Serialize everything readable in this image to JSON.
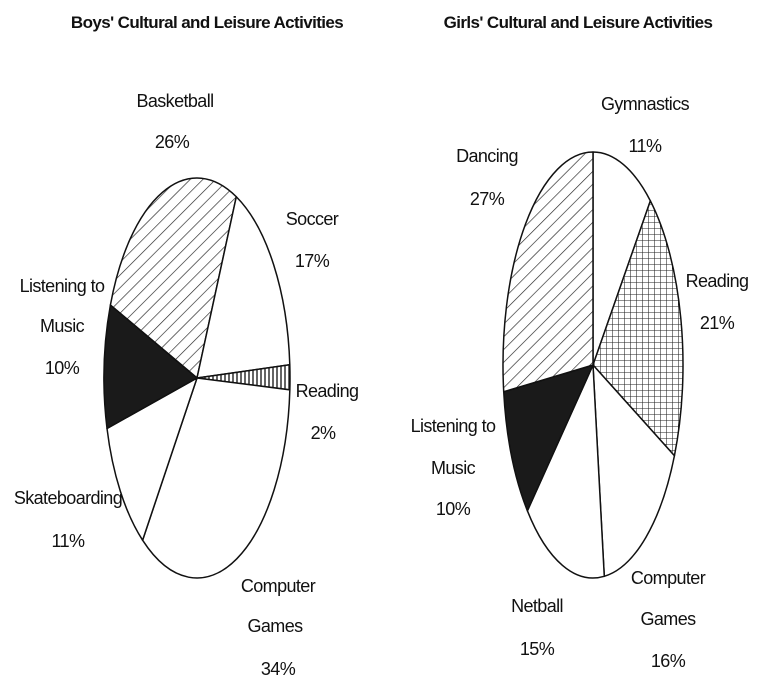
{
  "chart_data": [
    {
      "type": "pie",
      "title": "Boys' Cultural and Leisure Activities",
      "slices": [
        {
          "label": "Basketball",
          "label_lines": [
            "Basketball"
          ],
          "value": 26,
          "value_label": "26%",
          "fill": "diagonal-hatch"
        },
        {
          "label": "Soccer",
          "label_lines": [
            "Soccer"
          ],
          "value": 17,
          "value_label": "17%",
          "fill": "white"
        },
        {
          "label": "Reading",
          "label_lines": [
            "Reading"
          ],
          "value": 2,
          "value_label": "2%",
          "fill": "vertical-hatch"
        },
        {
          "label": "Computer Games",
          "label_lines": [
            "Computer",
            "Games"
          ],
          "value": 34,
          "value_label": "34%",
          "fill": "white"
        },
        {
          "label": "Skateboarding",
          "label_lines": [
            "Skateboarding"
          ],
          "value": 11,
          "value_label": "11%",
          "fill": "white"
        },
        {
          "label": "Listening to Music",
          "label_lines": [
            "Listening to",
            "Music"
          ],
          "value": 10,
          "value_label": "10%",
          "fill": "black"
        }
      ],
      "start_angle_deg": -68.6
    },
    {
      "type": "pie",
      "title": "Girls' Cultural and Leisure Activities",
      "slices": [
        {
          "label": "Gymnastics",
          "label_lines": [
            "Gymnastics"
          ],
          "value": 11,
          "value_label": "11%",
          "fill": "white"
        },
        {
          "label": "Reading",
          "label_lines": [
            "Reading"
          ],
          "value": 21,
          "value_label": "21%",
          "fill": "grid-hatch"
        },
        {
          "label": "Computer Games",
          "label_lines": [
            "Computer",
            "Games"
          ],
          "value": 16,
          "value_label": "16%",
          "fill": "white"
        },
        {
          "label": "Netball",
          "label_lines": [
            "Netball"
          ],
          "value": 15,
          "value_label": "15%",
          "fill": "white"
        },
        {
          "label": "Listening to Music",
          "label_lines": [
            "Listening to",
            "Music"
          ],
          "value": 10,
          "value_label": "10%",
          "fill": "black"
        },
        {
          "label": "Dancing",
          "label_lines": [
            "Dancing"
          ],
          "value": 27,
          "value_label": "27%",
          "fill": "diagonal-hatch"
        }
      ],
      "start_angle_deg": 0
    }
  ]
}
